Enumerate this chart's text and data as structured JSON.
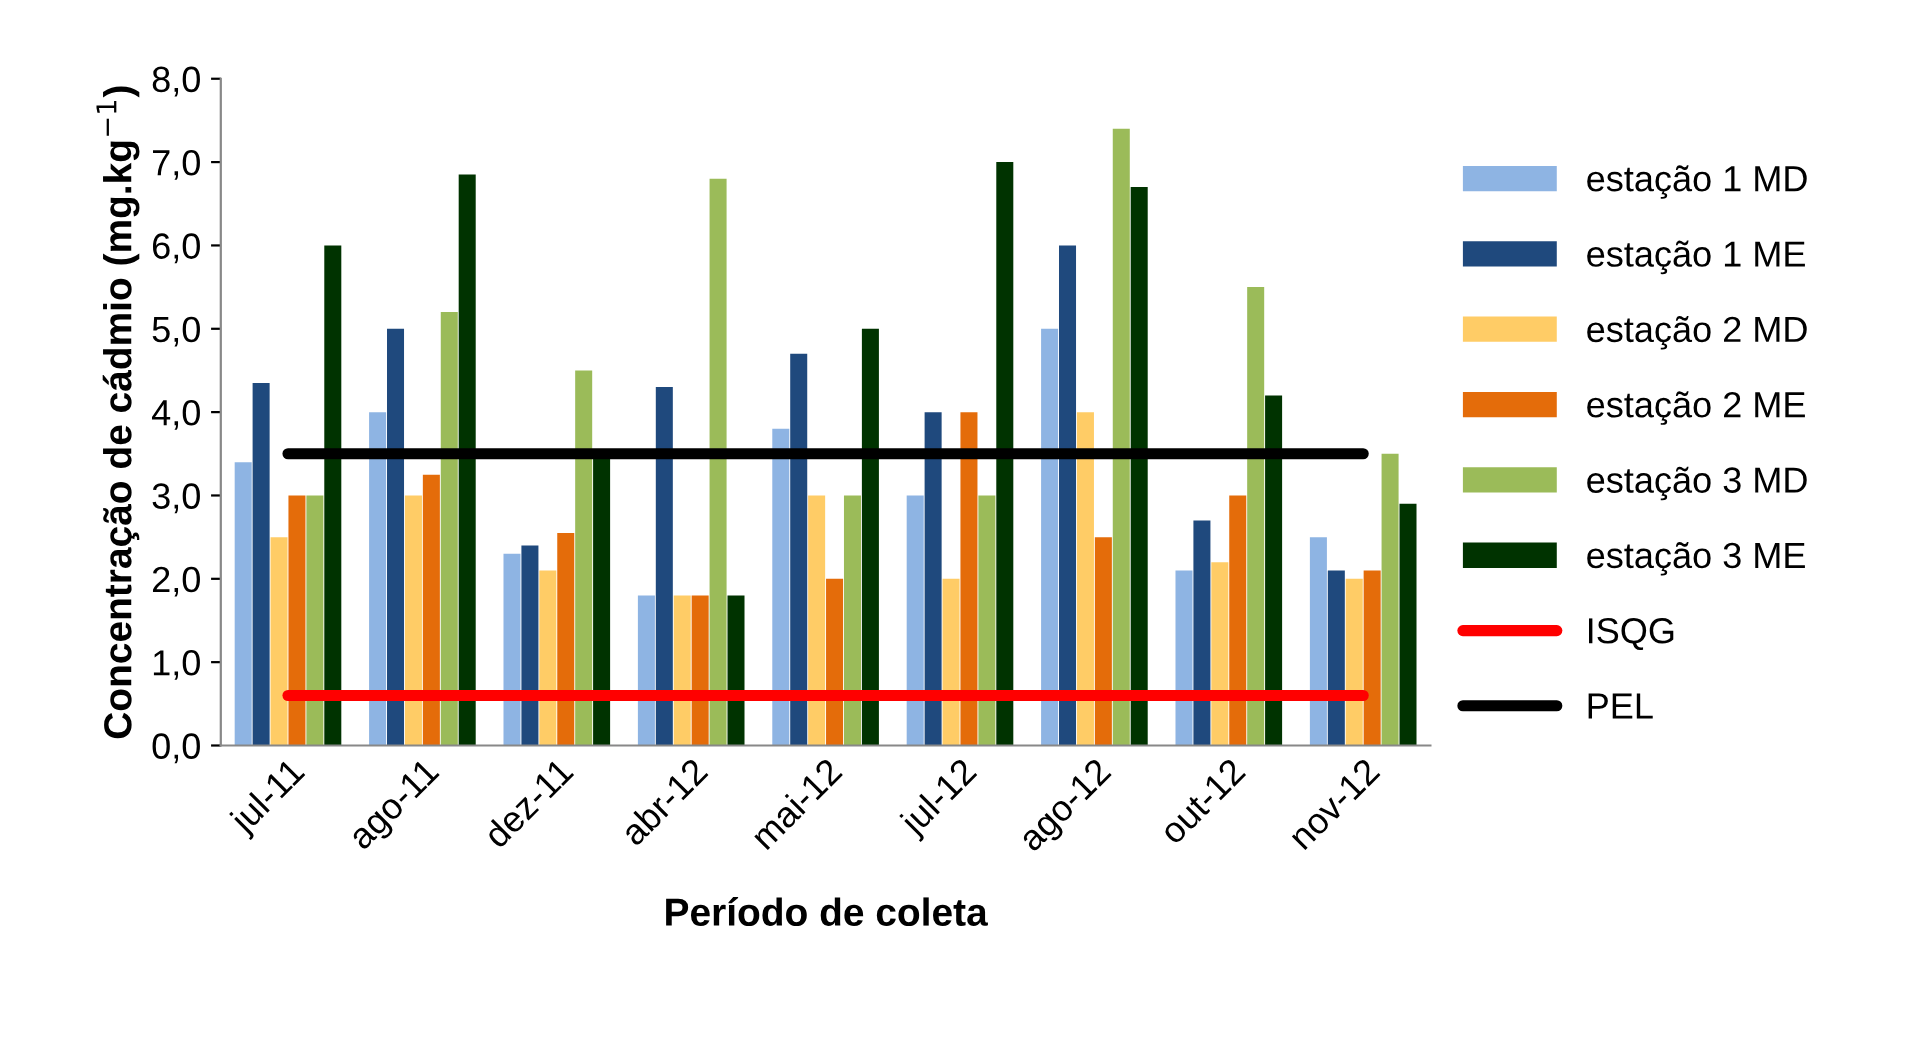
{
  "chart_data": {
    "type": "bar",
    "xlabel": "Período de coleta",
    "ylabel": "Concentração de cádmio (mg.kg$^{−1}$)",
    "categories": [
      "jul-11",
      "ago-11",
      "dez-11",
      "abr-12",
      "mai-12",
      "jul-12",
      "ago-12",
      "out-12",
      "nov-12"
    ],
    "series": [
      {
        "name": "estação 1 MD",
        "color": "#8eb4e3",
        "values": [
          3.4,
          4.0,
          2.3,
          1.8,
          3.8,
          3.0,
          5.0,
          2.1,
          2.5
        ]
      },
      {
        "name": "estação 1 ME",
        "color": "#1f497d",
        "values": [
          4.35,
          5.0,
          2.4,
          4.3,
          4.7,
          4.0,
          6.0,
          2.7,
          2.1
        ]
      },
      {
        "name": "estação 2 MD",
        "color": "#ffcc66",
        "values": [
          2.5,
          3.0,
          2.1,
          1.8,
          3.0,
          2.0,
          4.0,
          2.2,
          2.0
        ]
      },
      {
        "name": "estação 2 ME",
        "color": "#e46c0a",
        "values": [
          3.0,
          3.25,
          2.55,
          1.8,
          2.0,
          4.0,
          2.5,
          3.0,
          2.1
        ]
      },
      {
        "name": "estação 3 MD",
        "color": "#9bbb59",
        "values": [
          3.0,
          5.2,
          4.5,
          6.8,
          3.0,
          3.0,
          7.4,
          5.5,
          3.5
        ]
      },
      {
        "name": "estação 3 ME",
        "color": "#003300",
        "values": [
          6.0,
          6.85,
          3.5,
          1.8,
          5.0,
          7.0,
          6.7,
          4.2,
          2.9
        ]
      },
      {
        "name": "ISQG",
        "type": "line",
        "color": "#ff0000",
        "values": [
          0.6,
          0.6,
          0.6,
          0.6,
          0.6,
          0.6,
          0.6,
          0.6,
          0.6
        ]
      },
      {
        "name": "PEL",
        "type": "line",
        "color": "#000000",
        "values": [
          3.5,
          3.5,
          3.5,
          3.5,
          3.5,
          3.5,
          3.5,
          3.5,
          3.5
        ]
      }
    ],
    "ylim": [
      0,
      8
    ],
    "yticks": [
      {
        "value": 0,
        "label": "0,0"
      },
      {
        "value": 1,
        "label": "1,0"
      },
      {
        "value": 2,
        "label": "2,0"
      },
      {
        "value": 3,
        "label": "3,0"
      },
      {
        "value": 4,
        "label": "4,0"
      },
      {
        "value": 5,
        "label": "5,0"
      },
      {
        "value": 6,
        "label": "6,0"
      },
      {
        "value": 7,
        "label": "7,0"
      },
      {
        "value": 8,
        "label": "8,0"
      }
    ],
    "grid": false,
    "legend": "right"
  }
}
